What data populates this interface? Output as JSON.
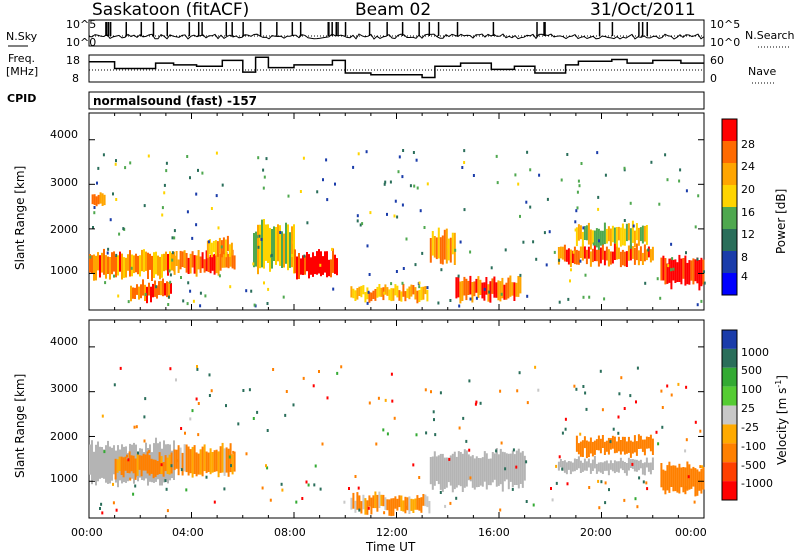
{
  "header": {
    "station": "Saskatoon (fitACF)",
    "beam": "Beam 02",
    "date": "31/Oct/2011"
  },
  "noise_panel": {
    "left_label": "N.Sky",
    "right_label": "N.Search",
    "left_ticks": [
      "10^5",
      "10^0"
    ],
    "right_ticks": [
      "10^5",
      "10^0"
    ]
  },
  "freq_panel": {
    "left_label_1": "Freq.",
    "left_label_2": "[MHz]",
    "right_label": "Nave",
    "left_ticks": [
      "18",
      "8"
    ],
    "right_ticks": [
      "60",
      "0"
    ]
  },
  "cpid": {
    "label": "CPID",
    "program": "normalsound (fast) -157"
  },
  "power_panel": {
    "ylabel": "Slant Range [km]",
    "yticks": [
      "4000",
      "3000",
      "2000",
      "1000"
    ],
    "colorbar_label": "Power [dB]",
    "colorbar_ticks": [
      "28",
      "24",
      "20",
      "16",
      "12",
      "8",
      "4"
    ],
    "colorbar_colors": [
      "#ff0000",
      "#ff6a00",
      "#ffa500",
      "#ffd400",
      "#4fa84f",
      "#2a6e5a",
      "#1a3caa",
      "#0000ff"
    ]
  },
  "velocity_panel": {
    "ylabel": "Slant Range [km]",
    "yticks": [
      "4000",
      "3000",
      "2000",
      "1000"
    ],
    "colorbar_label": "Velocity [m s^-1]",
    "colorbar_ticks": [
      "1000",
      "500",
      "100",
      "25",
      "-25",
      "-100",
      "-500",
      "-1000"
    ],
    "colorbar_colors": [
      "#1a3caa",
      "#2a6e5a",
      "#33aa33",
      "#55cc33",
      "#c8c8c8",
      "#ffaa00",
      "#ff8000",
      "#ff4000",
      "#ff0000"
    ],
    "ground_scatter_color": "#b4b4b4"
  },
  "xaxis": {
    "label": "Time UT",
    "ticks": [
      "00:00",
      "04:00",
      "08:00",
      "12:00",
      "16:00",
      "20:00",
      "00:00"
    ]
  },
  "chart_data": {
    "type": "heatmap",
    "title": "Saskatoon (fitACF) Beam 02 31/Oct/2011",
    "xlabel": "Time UT",
    "ylabel": "Slant Range [km]",
    "xlim": [
      0,
      24
    ],
    "ylim": [
      180,
      4600
    ],
    "power_scale_dB": [
      0,
      30
    ],
    "velocity_scale_ms": [
      -1000,
      1000
    ],
    "nave_step": [
      [
        0,
        45
      ],
      [
        1.0,
        30
      ],
      [
        2.6,
        42
      ],
      [
        3.3,
        38
      ],
      [
        4.2,
        35
      ],
      [
        5.2,
        48
      ],
      [
        6.0,
        22
      ],
      [
        6.5,
        55
      ],
      [
        7.0,
        32
      ],
      [
        8.0,
        38
      ],
      [
        9.5,
        48
      ],
      [
        10.0,
        20
      ],
      [
        11.0,
        16
      ],
      [
        13.0,
        10
      ],
      [
        13.5,
        35
      ],
      [
        14.5,
        42
      ],
      [
        15.7,
        28
      ],
      [
        16.6,
        35
      ],
      [
        17.4,
        20
      ],
      [
        18.6,
        38
      ],
      [
        19.1,
        46
      ],
      [
        20.4,
        50
      ],
      [
        21.0,
        42
      ],
      [
        22.0,
        48
      ],
      [
        23.1,
        42
      ]
    ],
    "power_regions": [
      {
        "t0": 0.0,
        "t1": 3.3,
        "r0": 900,
        "r1": 1500,
        "dB": 22
      },
      {
        "t0": 0.1,
        "t1": 0.6,
        "r0": 2500,
        "r1": 2800,
        "dB": 22
      },
      {
        "t0": 1.6,
        "t1": 3.2,
        "r0": 400,
        "r1": 800,
        "dB": 24
      },
      {
        "t0": 3.3,
        "t1": 5.7,
        "r0": 1000,
        "r1": 1500,
        "dB": 24
      },
      {
        "t0": 4.6,
        "t1": 5.6,
        "r0": 1400,
        "r1": 1800,
        "dB": 20
      },
      {
        "t0": 6.4,
        "t1": 8.0,
        "r0": 1000,
        "r1": 2200,
        "dB": 16
      },
      {
        "t0": 8.0,
        "t1": 9.7,
        "r0": 900,
        "r1": 1500,
        "dB": 28
      },
      {
        "t0": 10.2,
        "t1": 13.2,
        "r0": 400,
        "r1": 700,
        "dB": 20
      },
      {
        "t0": 13.3,
        "t1": 14.3,
        "r0": 1200,
        "r1": 2000,
        "dB": 20
      },
      {
        "t0": 14.3,
        "t1": 16.8,
        "r0": 400,
        "r1": 900,
        "dB": 24
      },
      {
        "t0": 18.3,
        "t1": 22.0,
        "r0": 1200,
        "r1": 1600,
        "dB": 24
      },
      {
        "t0": 19.0,
        "t1": 21.8,
        "r0": 1600,
        "r1": 2100,
        "dB": 16
      },
      {
        "t0": 22.3,
        "t1": 24.0,
        "r0": 700,
        "r1": 1400,
        "dB": 28
      }
    ],
    "velocity_regions": [
      {
        "t0": 0.0,
        "t1": 3.3,
        "r0": 900,
        "r1": 1900,
        "v": 0,
        "ground_scatter": true
      },
      {
        "t0": 1.0,
        "t1": 3.2,
        "r0": 1100,
        "r1": 1600,
        "v": -200
      },
      {
        "t0": 3.3,
        "t1": 5.7,
        "r0": 1100,
        "r1": 1800,
        "v": -150
      },
      {
        "t0": 10.2,
        "t1": 13.3,
        "r0": 300,
        "r1": 700,
        "v": -100
      },
      {
        "t0": 13.3,
        "t1": 17.0,
        "r0": 800,
        "r1": 1700,
        "v": 0,
        "ground_scatter": true
      },
      {
        "t0": 18.3,
        "t1": 22.0,
        "r0": 1200,
        "r1": 1500,
        "v": 0,
        "ground_scatter": true
      },
      {
        "t0": 19.0,
        "t1": 22.0,
        "r0": 1600,
        "r1": 2000,
        "v": -300
      },
      {
        "t0": 22.3,
        "t1": 24.0,
        "r0": 700,
        "r1": 1400,
        "v": -300
      }
    ]
  }
}
